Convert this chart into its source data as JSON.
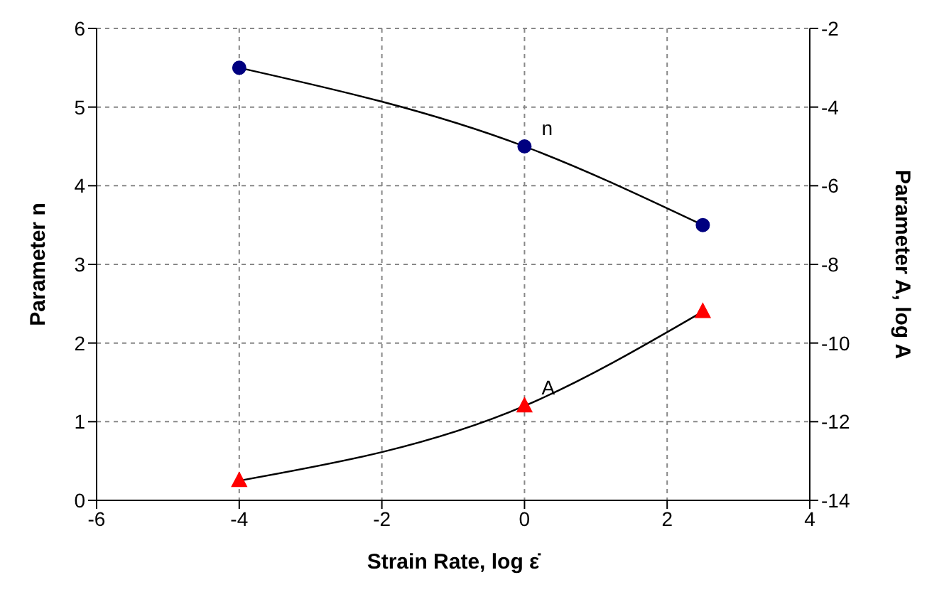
{
  "chart_data": {
    "type": "line",
    "xlabel": "Strain Rate, log ε̇",
    "ylabel": "Parameter  n",
    "y2label": "Parameter A, log A",
    "x": [
      -4,
      0,
      2.5
    ],
    "series": [
      {
        "name": "n",
        "color": "#000080",
        "values": [
          5.5,
          4.5,
          3.5
        ],
        "marker": "circle"
      },
      {
        "name": "A",
        "color": "#ff0000",
        "values": [
          -13.5,
          -11.6,
          -9.2
        ],
        "axis": "y2",
        "marker": "triangle"
      }
    ],
    "xlim": [
      -6,
      4
    ],
    "xticks": [
      -6,
      -4,
      -2,
      0,
      2,
      4
    ],
    "ylim": [
      0,
      6
    ],
    "yticks": [
      0,
      1,
      2,
      3,
      4,
      5,
      6
    ],
    "y2lim": [
      -14,
      -2
    ],
    "y2ticks": [
      -14,
      -12,
      -10,
      -8,
      -6,
      -4,
      -2
    ],
    "grid": true,
    "line_style": "solid"
  }
}
